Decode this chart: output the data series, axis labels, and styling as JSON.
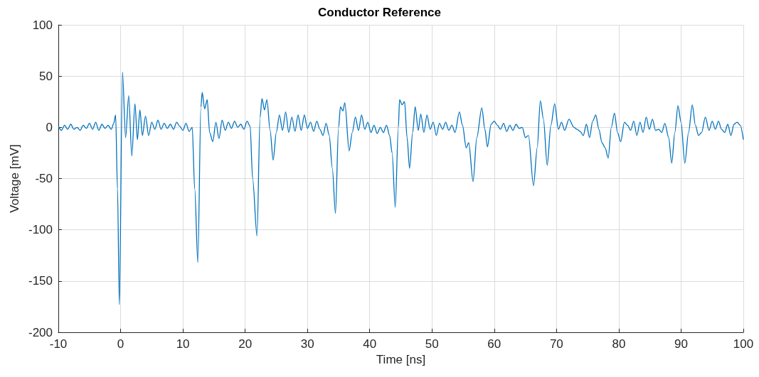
{
  "chart_data": {
    "type": "line",
    "title": "Conductor Reference",
    "xlabel": "Time [ns]",
    "ylabel": "Voltage [mV]",
    "series": [
      {
        "color": "#0072bd",
        "x": [
          -10,
          -9.5,
          -9,
          -8.5,
          -8,
          -7.5,
          -7,
          -6.5,
          -6,
          -5.5,
          -5,
          -4.5,
          -4,
          -3.5,
          -3,
          -2.5,
          -2,
          -1.5,
          -1.1,
          -0.8,
          -0.5,
          -0.2,
          0.3,
          0.8,
          1.3,
          1.8,
          2.3,
          2.7,
          3.1,
          3.5,
          4,
          4.5,
          5,
          5.5,
          6,
          6.5,
          7,
          7.5,
          8,
          8.5,
          9,
          9.5,
          10,
          10.5,
          11,
          11.5,
          11.9,
          12.4,
          12.9,
          13.1,
          13.5,
          13.9,
          14.3,
          14.8,
          15.3,
          15.8,
          16.3,
          16.8,
          17.3,
          17.8,
          18.3,
          18.8,
          19.3,
          19.8,
          20.3,
          20.8,
          21.2,
          21.9,
          22.4,
          22.7,
          23.1,
          23.5,
          24,
          24.5,
          25,
          25.5,
          26,
          26.5,
          27,
          27.5,
          28,
          28.5,
          29,
          29.5,
          30,
          30.5,
          31,
          31.5,
          32,
          32.5,
          33,
          33.5,
          34,
          34.5,
          35,
          35.3,
          35.7,
          36,
          36.7,
          37.2,
          37.7,
          38.2,
          38.7,
          39.2,
          39.7,
          40.2,
          40.7,
          41.2,
          41.7,
          42.2,
          42.7,
          43.2,
          43.6,
          44.1,
          44.6,
          44.8,
          45.2,
          45.6,
          46,
          46.4,
          46.9,
          47.3,
          47.8,
          48.2,
          48.7,
          49.2,
          49.7,
          50.2,
          50.7,
          51.2,
          51.7,
          52.2,
          52.7,
          53.2,
          53.7,
          54.4,
          54.9,
          55.5,
          55.9,
          56.6,
          57.2,
          58,
          58.5,
          58.9,
          59.5,
          60,
          60.5,
          61,
          61.5,
          62,
          62.5,
          63,
          63.5,
          64,
          64.5,
          65,
          65.5,
          66.3,
          66.9,
          67.4,
          67.9,
          68.5,
          69.1,
          69.7,
          70.3,
          70.8,
          71.3,
          72,
          72.8,
          73.3,
          73.8,
          74.3,
          74.8,
          75.3,
          75.8,
          76.3,
          76.8,
          77.3,
          77.8,
          78.3,
          78.8,
          79.3,
          79.8,
          80.3,
          80.9,
          81.4,
          81.9,
          82.4,
          82.9,
          83.4,
          83.9,
          84.4,
          84.9,
          85.4,
          85.9,
          86.4,
          86.9,
          87.4,
          88,
          88.5,
          89,
          89.5,
          90,
          90.6,
          91.2,
          91.8,
          92.3,
          92.8,
          93.3,
          93.9,
          94.5,
          95,
          95.5,
          96,
          96.5,
          97,
          97.5,
          98,
          98.5,
          99,
          99.5,
          100
        ],
        "values": [
          1,
          -3,
          2,
          -2,
          3,
          -2,
          0,
          -3,
          2,
          -1,
          4,
          -2,
          5,
          -3,
          3,
          -1,
          2,
          -2,
          4,
          12,
          -60,
          -173,
          54,
          -10,
          31,
          -28,
          23,
          -12,
          17,
          -8,
          11,
          -8,
          5,
          -2,
          7,
          -2,
          4,
          -1,
          3,
          -2,
          5,
          1,
          -3,
          4,
          -4,
          0,
          -60,
          -132,
          20,
          34,
          18,
          27,
          -5,
          -14,
          5,
          -11,
          7,
          -3,
          5,
          -1,
          6,
          0,
          3,
          -2,
          6,
          1,
          -50,
          -106,
          10,
          28,
          17,
          27,
          -3,
          -32,
          -5,
          12,
          -3,
          15,
          -5,
          10,
          -4,
          12,
          -3,
          12,
          -1,
          5,
          -4,
          6,
          -2,
          -8,
          4,
          -8,
          -40,
          -84,
          0,
          20,
          16,
          24,
          -23,
          -5,
          10,
          -3,
          12,
          -2,
          5,
          -5,
          2,
          -6,
          0,
          -5,
          2,
          -8,
          -25,
          -78,
          0,
          27,
          22,
          25,
          -10,
          -40,
          -5,
          20,
          -3,
          13,
          -5,
          12,
          -2,
          5,
          -8,
          4,
          -2,
          5,
          -3,
          2,
          -5,
          15,
          2,
          -20,
          -15,
          -53,
          -10,
          19,
          -2,
          -19,
          3,
          6,
          2,
          -2,
          4,
          -4,
          2,
          -3,
          3,
          -1,
          0,
          -10,
          -8,
          -57,
          -20,
          26,
          8,
          -37,
          2,
          23,
          -2,
          5,
          -3,
          8,
          0,
          -2,
          -4,
          -8,
          3,
          -10,
          6,
          12,
          -2,
          -15,
          -20,
          -30,
          0,
          14,
          -5,
          -14,
          5,
          2,
          -3,
          6,
          -8,
          5,
          -5,
          10,
          -2,
          8,
          -3,
          -2,
          -5,
          4,
          -10,
          -35,
          -5,
          21,
          5,
          -35,
          -5,
          22,
          2,
          -8,
          -5,
          10,
          -3,
          6,
          -2,
          6,
          -2,
          -5,
          3,
          -8,
          3,
          5,
          2,
          -12
        ]
      }
    ],
    "xlim": [
      -10,
      100
    ],
    "xticks": [
      -10,
      0,
      10,
      20,
      30,
      40,
      50,
      60,
      70,
      80,
      90,
      100
    ],
    "ylim": [
      -200,
      100
    ],
    "yticks": [
      -200,
      -150,
      -100,
      -50,
      0,
      50,
      100
    ],
    "grid": true,
    "marker": "none",
    "line_style": "solid"
  }
}
